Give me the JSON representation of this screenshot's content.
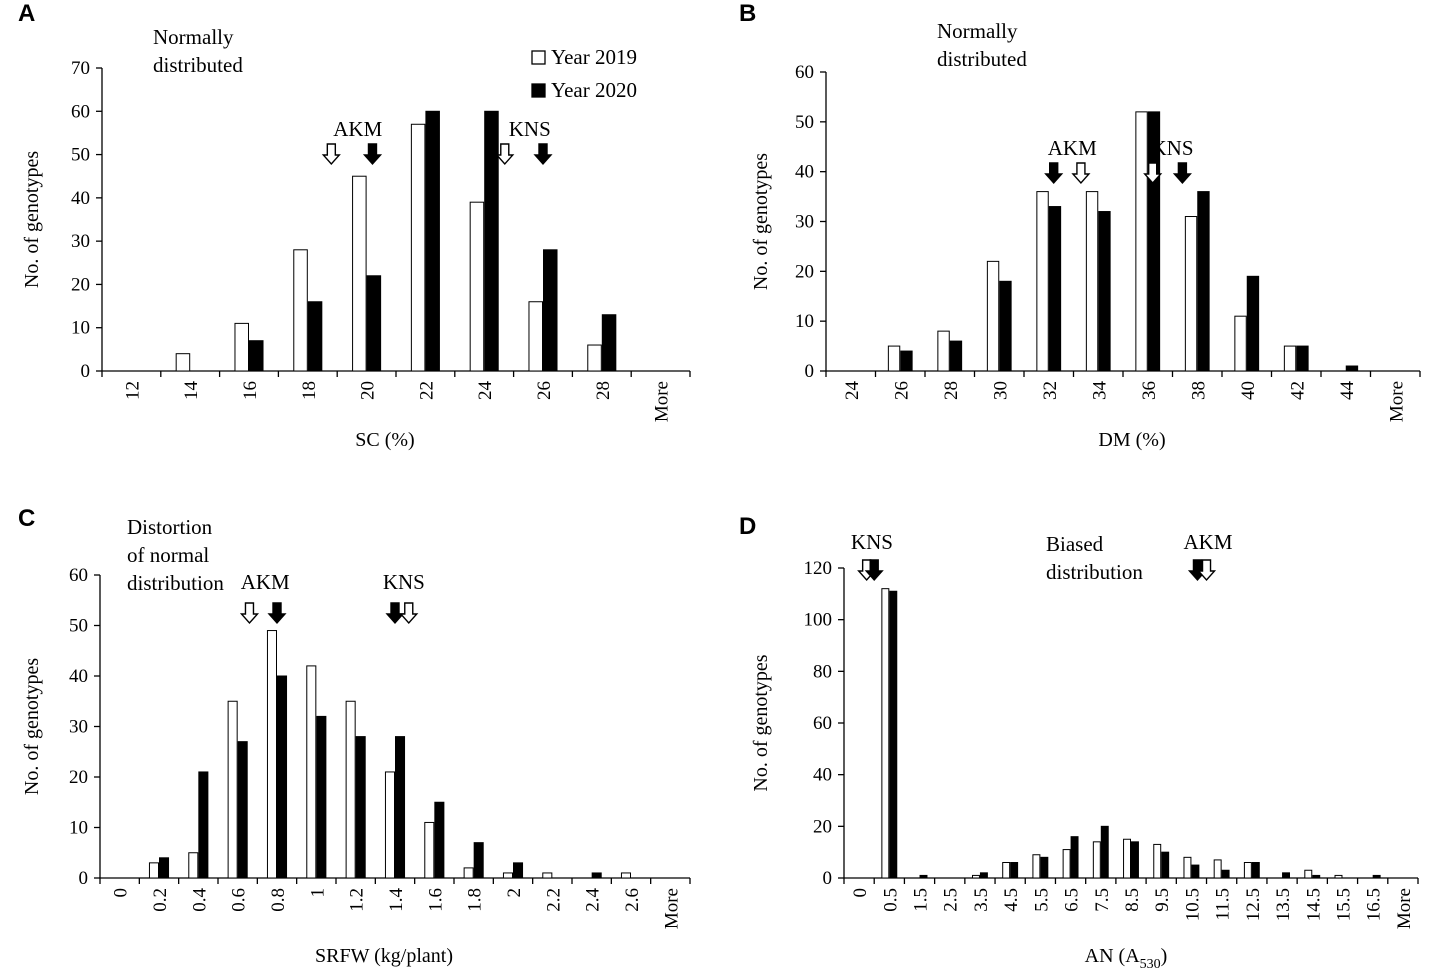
{
  "legend": {
    "series1": "Year 2019",
    "series2": "Year 2020",
    "color1": "#ffffff",
    "color2": "#000000"
  },
  "chart_data": [
    {
      "panel": "A",
      "type": "bar",
      "annotation": [
        "Normally",
        "distributed"
      ],
      "xlabel": "SC (%)",
      "xlabel_sub": "",
      "ylabel": "No. of genotypes",
      "ylim": [
        0,
        70
      ],
      "yticks": [
        0,
        10,
        20,
        30,
        40,
        50,
        60,
        70
      ],
      "categories": [
        "12",
        "14",
        "16",
        "18",
        "20",
        "22",
        "24",
        "26",
        "28",
        "More"
      ],
      "series": [
        {
          "name": "Year 2019",
          "values": [
            0,
            4,
            11,
            28,
            45,
            57,
            39,
            16,
            6,
            0
          ]
        },
        {
          "name": "Year 2020",
          "values": [
            0,
            0,
            7,
            16,
            22,
            60,
            60,
            28,
            13,
            0
          ]
        }
      ],
      "markers": [
        {
          "label": "AKM",
          "arrows": [
            {
              "pos": 3.9,
              "fill": "white"
            },
            {
              "pos": 4.6,
              "fill": "black"
            }
          ]
        },
        {
          "label": "KNS",
          "arrows": [
            {
              "pos": 6.85,
              "fill": "white"
            },
            {
              "pos": 7.5,
              "fill": "black"
            }
          ]
        }
      ]
    },
    {
      "panel": "B",
      "type": "bar",
      "annotation": [
        "Normally",
        "distributed"
      ],
      "xlabel": "DM (%)",
      "xlabel_sub": "",
      "ylabel": "No. of genotypes",
      "ylim": [
        0,
        60
      ],
      "yticks": [
        0,
        10,
        20,
        30,
        40,
        50,
        60
      ],
      "categories": [
        "24",
        "26",
        "28",
        "30",
        "32",
        "34",
        "36",
        "38",
        "40",
        "42",
        "44",
        "More"
      ],
      "series": [
        {
          "name": "Year 2019",
          "values": [
            0,
            5,
            8,
            22,
            36,
            36,
            52,
            31,
            11,
            5,
            0,
            0
          ]
        },
        {
          "name": "Year 2020",
          "values": [
            0,
            4,
            6,
            18,
            33,
            32,
            52,
            36,
            19,
            5,
            1,
            0
          ]
        }
      ],
      "markers": [
        {
          "label": "AKM",
          "arrows": [
            {
              "pos": 4.6,
              "fill": "black"
            },
            {
              "pos": 5.15,
              "fill": "white"
            }
          ]
        },
        {
          "label": "KNS",
          "arrows": [
            {
              "pos": 6.6,
              "fill": "white"
            },
            {
              "pos": 7.2,
              "fill": "black"
            }
          ]
        }
      ]
    },
    {
      "panel": "C",
      "type": "bar",
      "annotation": [
        "Distortion",
        "of normal",
        "distribution"
      ],
      "xlabel": "SRFW (kg/plant)",
      "xlabel_sub": "",
      "ylabel": "No. of genotypes",
      "ylim": [
        0,
        60
      ],
      "yticks": [
        0,
        10,
        20,
        30,
        40,
        50,
        60
      ],
      "categories": [
        "0",
        "0.2",
        "0.4",
        "0.6",
        "0.8",
        "1",
        "1.2",
        "1.4",
        "1.6",
        "1.8",
        "2",
        "2.2",
        "2.4",
        "2.6",
        "More"
      ],
      "series": [
        {
          "name": "Year 2019",
          "values": [
            0,
            3,
            5,
            35,
            49,
            42,
            35,
            21,
            11,
            2,
            1,
            1,
            0,
            1,
            0
          ]
        },
        {
          "name": "Year 2020",
          "values": [
            0,
            4,
            21,
            27,
            40,
            32,
            28,
            28,
            15,
            7,
            3,
            0,
            1,
            0,
            0
          ]
        }
      ],
      "markers": [
        {
          "label": "AKM",
          "arrows": [
            {
              "pos": 3.8,
              "fill": "white"
            },
            {
              "pos": 4.5,
              "fill": "black"
            }
          ]
        },
        {
          "label": "KNS",
          "arrows": [
            {
              "pos": 7.5,
              "fill": "black"
            },
            {
              "pos": 7.85,
              "fill": "white"
            }
          ]
        }
      ]
    },
    {
      "panel": "D",
      "type": "bar",
      "annotation": [
        "Biased",
        "distribution"
      ],
      "xlabel": "AN (A",
      "xlabel_sub": "530",
      "ylabel": "No. of genotypes",
      "ylim": [
        0,
        120
      ],
      "yticks": [
        0,
        20,
        40,
        60,
        80,
        100,
        120
      ],
      "categories": [
        "0",
        "0.5",
        "1.5",
        "2.5",
        "3.5",
        "4.5",
        "5.5",
        "6.5",
        "7.5",
        "8.5",
        "9.5",
        "10.5",
        "11.5",
        "12.5",
        "13.5",
        "14.5",
        "15.5",
        "16.5",
        "More"
      ],
      "series": [
        {
          "name": "Year 2019",
          "values": [
            0,
            112,
            0,
            0,
            1,
            6,
            9,
            11,
            14,
            15,
            13,
            8,
            7,
            6,
            0,
            3,
            1,
            0,
            0
          ]
        },
        {
          "name": "Year 2020",
          "values": [
            0,
            111,
            1,
            0,
            2,
            6,
            8,
            16,
            20,
            14,
            10,
            5,
            3,
            6,
            2,
            1,
            0,
            1,
            0
          ]
        }
      ],
      "markers": [
        {
          "label": "KNS",
          "arrows": [
            {
              "pos": 0.75,
              "fill": "white"
            },
            {
              "pos": 1.0,
              "fill": "black"
            }
          ]
        },
        {
          "label": "AKM",
          "arrows": [
            {
              "pos": 11.7,
              "fill": "black"
            },
            {
              "pos": 12.0,
              "fill": "white"
            }
          ]
        }
      ]
    }
  ]
}
